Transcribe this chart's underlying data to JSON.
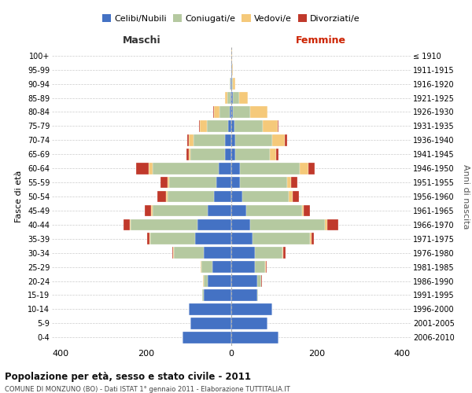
{
  "age_groups": [
    "0-4",
    "5-9",
    "10-14",
    "15-19",
    "20-24",
    "25-29",
    "30-34",
    "35-39",
    "40-44",
    "45-49",
    "50-54",
    "55-59",
    "60-64",
    "65-69",
    "70-74",
    "75-79",
    "80-84",
    "85-89",
    "90-94",
    "95-99",
    "100+"
  ],
  "birth_years": [
    "2006-2010",
    "2001-2005",
    "1996-2000",
    "1991-1995",
    "1986-1990",
    "1981-1985",
    "1976-1980",
    "1971-1975",
    "1966-1970",
    "1961-1965",
    "1956-1960",
    "1951-1955",
    "1946-1950",
    "1941-1945",
    "1936-1940",
    "1931-1935",
    "1926-1930",
    "1921-1925",
    "1916-1920",
    "1911-1915",
    "≤ 1910"
  ],
  "colors": {
    "celibi": "#4472c4",
    "coniugati": "#b5c9a0",
    "vedovi": "#f5c97a",
    "divorziati": "#c0392b"
  },
  "maschi": {
    "celibi": [
      115,
      95,
      100,
      65,
      55,
      45,
      65,
      85,
      80,
      55,
      40,
      35,
      30,
      15,
      14,
      8,
      3,
      2,
      1,
      0,
      0
    ],
    "coniugati": [
      0,
      0,
      0,
      3,
      10,
      25,
      70,
      105,
      155,
      130,
      110,
      110,
      155,
      80,
      75,
      50,
      25,
      8,
      2,
      0,
      0
    ],
    "vedovi": [
      0,
      0,
      0,
      0,
      1,
      1,
      2,
      2,
      2,
      2,
      3,
      5,
      8,
      5,
      10,
      15,
      12,
      5,
      1,
      0,
      0
    ],
    "divorziati": [
      0,
      0,
      0,
      0,
      0,
      0,
      2,
      5,
      15,
      15,
      20,
      15,
      30,
      5,
      5,
      2,
      2,
      0,
      0,
      0,
      0
    ]
  },
  "femmine": {
    "celibi": [
      110,
      85,
      95,
      60,
      60,
      55,
      55,
      50,
      45,
      35,
      25,
      20,
      20,
      10,
      10,
      8,
      4,
      3,
      2,
      1,
      0
    ],
    "coniugati": [
      0,
      0,
      0,
      2,
      10,
      25,
      65,
      135,
      175,
      130,
      110,
      110,
      140,
      80,
      85,
      65,
      40,
      15,
      2,
      0,
      0
    ],
    "vedovi": [
      0,
      0,
      0,
      0,
      0,
      1,
      2,
      3,
      5,
      5,
      8,
      10,
      20,
      15,
      30,
      35,
      40,
      20,
      5,
      2,
      1
    ],
    "divorziati": [
      0,
      0,
      0,
      0,
      1,
      1,
      5,
      5,
      25,
      15,
      15,
      15,
      15,
      5,
      5,
      2,
      1,
      0,
      0,
      0,
      0
    ]
  },
  "xlim": 420,
  "title": "Popolazione per età, sesso e stato civile - 2011",
  "subtitle": "COMUNE DI MONZUNO (BO) - Dati ISTAT 1° gennaio 2011 - Elaborazione TUTTITALIA.IT",
  "ylabel_left": "Fasce di età",
  "ylabel_right": "Anni di nascita",
  "xlabel_left": "Maschi",
  "xlabel_right": "Femmine",
  "bg_color": "#ffffff",
  "grid_color": "#cccccc",
  "legend_labels": [
    "Celibi/Nubili",
    "Coniugati/e",
    "Vedovi/e",
    "Divorziati/e"
  ]
}
